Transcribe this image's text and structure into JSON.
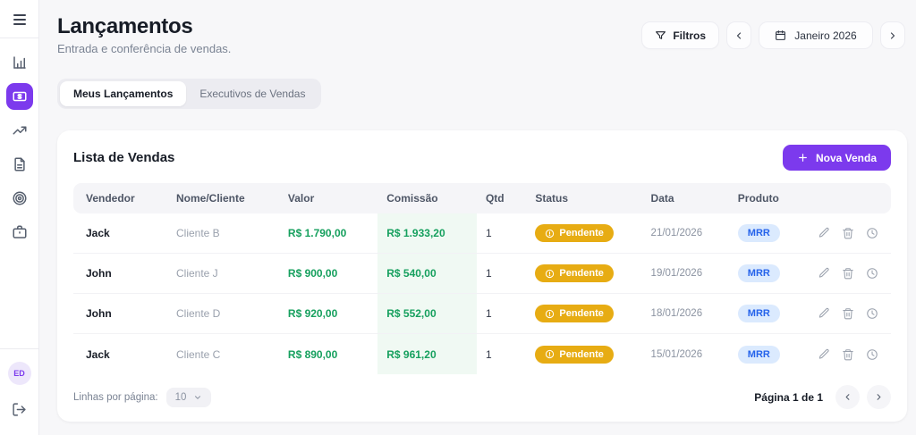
{
  "sidebar": {
    "items": [
      {
        "id": "dashboard",
        "icon": "bar-chart-icon",
        "active": false
      },
      {
        "id": "lancamentos",
        "icon": "banknote-icon",
        "active": true
      },
      {
        "id": "performance",
        "icon": "trending-up-icon",
        "active": false
      },
      {
        "id": "relatorios",
        "icon": "document-icon",
        "active": false
      },
      {
        "id": "metas",
        "icon": "target-icon",
        "active": false
      },
      {
        "id": "produtos",
        "icon": "briefcase-icon",
        "active": false
      }
    ],
    "avatar_initials": "ED"
  },
  "header": {
    "title": "Lançamentos",
    "subtitle": "Entrada e conferência de vendas.",
    "filters_label": "Filtros",
    "period": "Janeiro 2026"
  },
  "tabs": [
    {
      "label": "Meus Lançamentos",
      "active": true
    },
    {
      "label": "Executivos de Vendas",
      "active": false
    }
  ],
  "card": {
    "title": "Lista de Vendas",
    "new_sale_label": "Nova Venda",
    "table": {
      "columns": {
        "vendedor": "Vendedor",
        "cliente": "Nome/Cliente",
        "valor": "Valor",
        "comissao": "Comissão",
        "qtd": "Qtd",
        "status": "Status",
        "data": "Data",
        "produto": "Produto"
      },
      "rows": [
        {
          "vendedor": "Jack",
          "cliente": "Cliente B",
          "valor": "R$ 1.790,00",
          "comissao": "R$ 1.933,20",
          "qtd": "1",
          "status": "Pendente",
          "data": "21/01/2026",
          "produto": "MRR"
        },
        {
          "vendedor": "John",
          "cliente": "Cliente J",
          "valor": "R$ 900,00",
          "comissao": "R$ 540,00",
          "qtd": "1",
          "status": "Pendente",
          "data": "19/01/2026",
          "produto": "MRR"
        },
        {
          "vendedor": "John",
          "cliente": "Cliente D",
          "valor": "R$ 920,00",
          "comissao": "R$ 552,00",
          "qtd": "1",
          "status": "Pendente",
          "data": "18/01/2026",
          "produto": "MRR"
        },
        {
          "vendedor": "Jack",
          "cliente": "Cliente C",
          "valor": "R$ 890,00",
          "comissao": "R$ 961,20",
          "qtd": "1",
          "status": "Pendente",
          "data": "15/01/2026",
          "produto": "MRR"
        }
      ]
    },
    "pagination": {
      "rows_per_page_label": "Linhas por página:",
      "rows_per_page_value": "10",
      "page_label": "Página 1 de 1"
    }
  },
  "colors": {
    "accent_purple": "#7c3aed",
    "money_green": "#16a05e",
    "commission_bg": "#f0f9f3",
    "status_pending_bg": "#e7ac13",
    "product_badge_bg": "#dbeafe",
    "product_badge_text": "#2563eb"
  }
}
